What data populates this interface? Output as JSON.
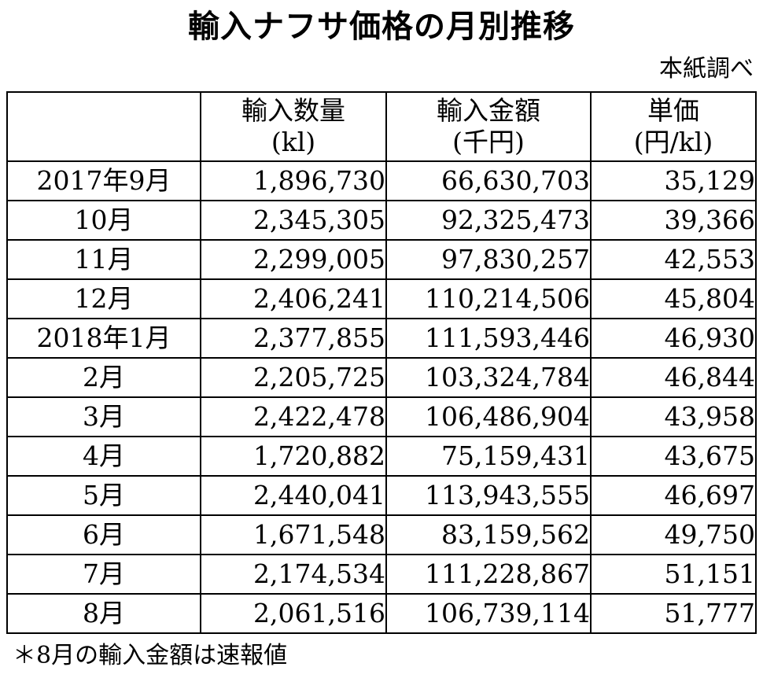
{
  "title": "輸入ナフサ価格の月別推移",
  "source": "本紙調べ",
  "table": {
    "headers": [
      {
        "line1": "",
        "line2": ""
      },
      {
        "line1": "輸入数量",
        "line2": "(kl)"
      },
      {
        "line1": "輸入金額",
        "line2": "(千円)"
      },
      {
        "line1": "単価",
        "line2": "(円/kl)"
      }
    ],
    "rows": [
      {
        "period": "2017年9月",
        "quantity": "1,896,730",
        "amount": "66,630,703",
        "unit_price": "35,129"
      },
      {
        "period": "10月",
        "quantity": "2,345,305",
        "amount": "92,325,473",
        "unit_price": "39,366"
      },
      {
        "period": "11月",
        "quantity": "2,299,005",
        "amount": "97,830,257",
        "unit_price": "42,553"
      },
      {
        "period": "12月",
        "quantity": "2,406,241",
        "amount": "110,214,506",
        "unit_price": "45,804"
      },
      {
        "period": "2018年1月",
        "quantity": "2,377,855",
        "amount": "111,593,446",
        "unit_price": "46,930"
      },
      {
        "period": "2月",
        "quantity": "2,205,725",
        "amount": "103,324,784",
        "unit_price": "46,844"
      },
      {
        "period": "3月",
        "quantity": "2,422,478",
        "amount": "106,486,904",
        "unit_price": "43,958"
      },
      {
        "period": "4月",
        "quantity": "1,720,882",
        "amount": "75,159,431",
        "unit_price": "43,675"
      },
      {
        "period": "5月",
        "quantity": "2,440,041",
        "amount": "113,943,555",
        "unit_price": "46,697"
      },
      {
        "period": "6月",
        "quantity": "1,671,548",
        "amount": "83,159,562",
        "unit_price": "49,750"
      },
      {
        "period": "7月",
        "quantity": "2,174,534",
        "amount": "111,228,867",
        "unit_price": "51,151"
      },
      {
        "period": "8月",
        "quantity": "2,061,516",
        "amount": "106,739,114",
        "unit_price": "51,777"
      }
    ]
  },
  "footnote": "＊8月の輸入金額は速報値"
}
